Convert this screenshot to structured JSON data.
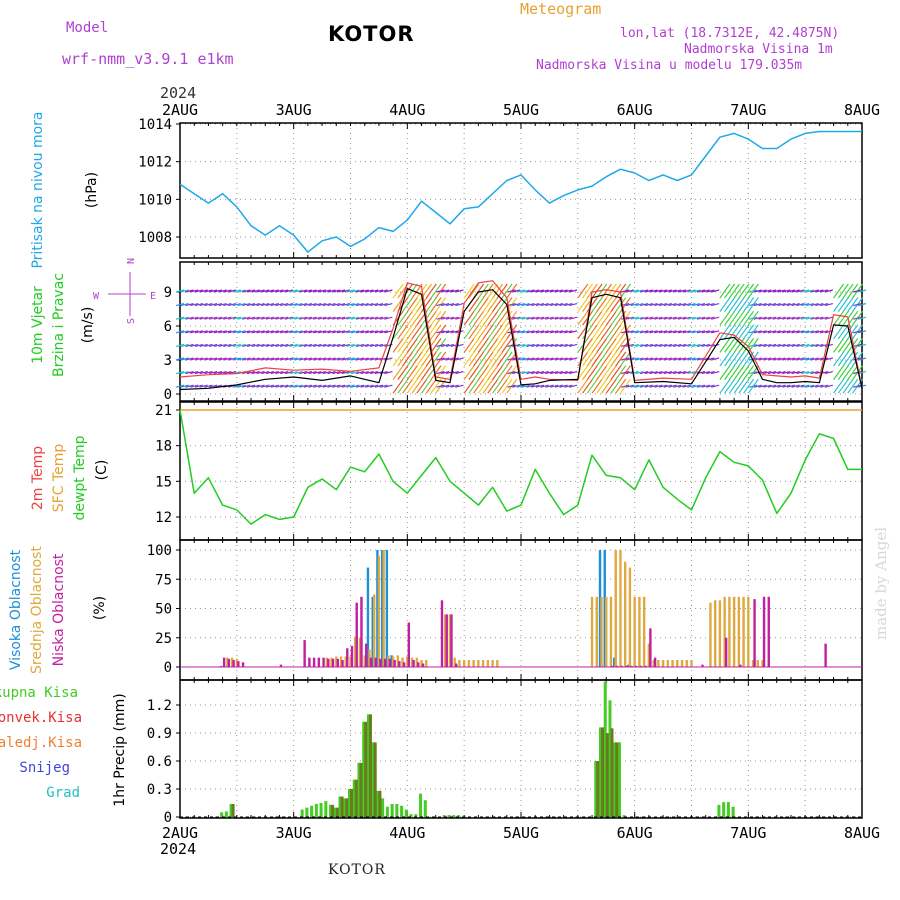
{
  "header": {
    "model_label": "Model",
    "model_name": "wrf-nmm_v3.9.1 e1km",
    "station": "KOTOR",
    "title": "Meteogram",
    "lonlat": "lon,lat (18.7312E, 42.4875N)",
    "elevation": "Nadmorska Visina 1m",
    "model_elevation": "Nadmorska Visina u modelu 179.035m",
    "year_top": "2024",
    "year_bottom": "2024",
    "footer_station": "KOTOR",
    "credit": "made by Angel"
  },
  "colors": {
    "pressure": "#20a8e8",
    "temp2m": "#f04040",
    "sfc": "#e8a030",
    "dewpt": "#22cc22",
    "high_cloud": "#1e90d8",
    "mid_cloud": "#e0a840",
    "low_cloud": "#c020a0",
    "total_precip": "#44cc22",
    "conv_precip": "#e83030",
    "freezing": "#f08030",
    "snow": "#4444dd",
    "hail": "#22c0c0",
    "wind_purple": "#9020c0"
  },
  "chart_data": [
    {
      "type": "line",
      "panel": "pressure",
      "ylabel_lines": [
        "Pritisak na nivou mora",
        "(hPa)"
      ],
      "x_ticks": [
        "2AUG",
        "3AUG",
        "4AUG",
        "5AUG",
        "6AUG",
        "7AUG",
        "8AUG"
      ],
      "x_unit": "hours since 2AUG 00UTC",
      "ylim": [
        1006.7,
        1014.1
      ],
      "yticks": [
        1008,
        1010,
        1012,
        1014
      ],
      "grid": true,
      "series": [
        {
          "name": "",
          "x": [
            0,
            3,
            6,
            9,
            12,
            15,
            18,
            21,
            24,
            27,
            30,
            33,
            36,
            39,
            42,
            45,
            48,
            51,
            54,
            57,
            60,
            63,
            66,
            69,
            72,
            75,
            78,
            81,
            84,
            87,
            90,
            93,
            96,
            99,
            102,
            105,
            108,
            111,
            114,
            117,
            120,
            123,
            126,
            129,
            132,
            135,
            138,
            141,
            144
          ],
          "values": [
            1010.8,
            1010.3,
            1009.8,
            1010.3,
            1009.6,
            1008.6,
            1008.1,
            1008.6,
            1008.1,
            1007.2,
            1007.8,
            1008.0,
            1007.5,
            1007.9,
            1008.5,
            1008.3,
            1008.9,
            1009.9,
            1009.3,
            1008.7,
            1009.5,
            1009.6,
            1010.3,
            1011.0,
            1011.3,
            1010.5,
            1009.8,
            1010.2,
            1010.5,
            1010.7,
            1011.2,
            1011.6,
            1011.4,
            1011.0,
            1011.3,
            1011.0,
            1011.3,
            1012.3,
            1013.3,
            1013.5,
            1013.2,
            1012.7,
            1012.7,
            1013.2,
            1013.5,
            1013.6,
            1013.6,
            1013.6,
            1013.6
          ]
        }
      ]
    },
    {
      "type": "line",
      "panel": "wind",
      "ylabel_lines": [
        "10m Vjetar",
        "Brzina i Pravac",
        "(m/s)"
      ],
      "compass": [
        "N",
        "S",
        "W",
        "E"
      ],
      "ylim": [
        -0.5,
        12.5
      ],
      "yticks": [
        0,
        3,
        6,
        9
      ],
      "grid": true,
      "series": [
        {
          "name": "speed",
          "color": "#000000",
          "x": [
            0,
            6,
            12,
            18,
            24,
            30,
            36,
            42,
            45,
            48,
            51,
            54,
            57,
            60,
            63,
            66,
            69,
            72,
            75,
            78,
            84,
            87,
            90,
            93,
            96,
            102,
            108,
            114,
            117,
            120,
            123,
            126,
            129,
            132,
            135,
            138,
            141,
            144
          ],
          "values": [
            0.4,
            0.5,
            0.8,
            1.3,
            1.5,
            1.2,
            1.6,
            1.0,
            5.0,
            9.3,
            8.8,
            1.2,
            1.0,
            7.3,
            9.0,
            9.2,
            7.9,
            0.8,
            0.9,
            1.2,
            1.3,
            8.5,
            8.8,
            8.5,
            1.0,
            1.1,
            0.9,
            4.8,
            5.0,
            3.8,
            1.3,
            1.0,
            1.0,
            1.1,
            1.0,
            6.1,
            6.0,
            0.5
          ]
        },
        {
          "name": "gust",
          "color": "#f04040",
          "x": [
            0,
            6,
            12,
            18,
            24,
            30,
            36,
            42,
            45,
            48,
            51,
            54,
            57,
            60,
            63,
            66,
            69,
            72,
            75,
            78,
            84,
            87,
            90,
            93,
            96,
            102,
            108,
            114,
            117,
            120,
            123,
            126,
            129,
            132,
            135,
            138,
            141,
            144
          ],
          "values": [
            1.5,
            1.7,
            1.8,
            2.3,
            2.1,
            2.2,
            2.0,
            2.3,
            5.8,
            9.8,
            9.5,
            1.5,
            1.3,
            8.0,
            9.8,
            10.0,
            8.5,
            1.3,
            1.5,
            1.3,
            1.2,
            9.0,
            9.2,
            9.0,
            1.2,
            1.4,
            1.3,
            5.4,
            5.2,
            4.2,
            1.7,
            1.6,
            1.5,
            1.6,
            1.4,
            7.0,
            6.8,
            0.5
          ]
        }
      ]
    },
    {
      "type": "line",
      "panel": "temperature",
      "ylabel_lines": [
        "2m Temp",
        "SFC Temp",
        "dewpt Temp",
        "(C)"
      ],
      "ylim": [
        10.5,
        21.3
      ],
      "yticks": [
        12,
        15,
        18,
        21
      ],
      "grid": true,
      "series": [
        {
          "name": "SFC Temp",
          "color": "#e8a030",
          "x": [
            0,
            144
          ],
          "values": [
            21.0,
            21.0
          ]
        },
        {
          "name": "dewpt Temp",
          "color": "#22cc22",
          "x": [
            0,
            3,
            6,
            9,
            12,
            15,
            18,
            21,
            24,
            27,
            30,
            33,
            36,
            39,
            42,
            45,
            48,
            51,
            54,
            57,
            60,
            63,
            66,
            69,
            72,
            75,
            78,
            81,
            84,
            87,
            90,
            93,
            96,
            99,
            102,
            105,
            108,
            111,
            114,
            117,
            120,
            123,
            126,
            129,
            132,
            135,
            138,
            141,
            144
          ],
          "values": [
            21.0,
            14.0,
            15.3,
            13.0,
            12.6,
            11.4,
            12.2,
            11.8,
            12.0,
            14.5,
            15.2,
            14.3,
            16.2,
            15.8,
            17.3,
            15.0,
            14.0,
            15.5,
            17.0,
            15.0,
            14.0,
            13.0,
            14.5,
            12.5,
            13.0,
            16.0,
            14.0,
            12.2,
            13.0,
            17.2,
            15.5,
            15.3,
            14.3,
            16.8,
            14.5,
            13.5,
            12.6,
            15.3,
            17.5,
            16.6,
            16.3,
            15.1,
            12.3,
            14.0,
            16.8,
            19.0,
            18.6,
            16.0,
            16.0
          ]
        }
      ]
    },
    {
      "type": "bar",
      "panel": "clouds",
      "ylabel_lines": [
        "Visoka Oblacnost",
        "Srednja Oblacnost",
        "Niska Oblacnost",
        "(%)"
      ],
      "ylim": [
        0,
        100
      ],
      "yticks": [
        0,
        25,
        50,
        75,
        100
      ],
      "grid": true,
      "series": [
        {
          "name": "Visoka Oblacnost",
          "color": "#1e90d8",
          "x": [
            9,
            40,
            41,
            42,
            43,
            44,
            45,
            89,
            90,
            92,
            95
          ],
          "values": [
            1,
            85,
            60,
            100,
            100,
            100,
            10,
            100,
            100,
            8,
            2
          ]
        },
        {
          "name": "Srednja Oblacnost",
          "color": "#e0a840",
          "x": [
            10,
            11,
            12,
            31,
            32,
            33,
            34,
            35,
            36,
            37,
            38,
            39,
            40,
            41,
            42,
            43,
            44,
            45,
            46,
            47,
            48,
            49,
            50,
            51,
            52,
            56,
            57,
            58,
            59,
            60,
            61,
            62,
            63,
            64,
            65,
            66,
            67,
            87,
            88,
            89,
            90,
            91,
            92,
            93,
            94,
            95,
            96,
            97,
            98,
            99,
            100,
            101,
            102,
            103,
            104,
            105,
            106,
            107,
            108,
            112,
            113,
            114,
            115,
            116,
            117,
            118,
            119,
            120,
            121,
            122,
            123
          ],
          "values": [
            8,
            8,
            7,
            8,
            8,
            9,
            9,
            9,
            9,
            26,
            25,
            10,
            15,
            62,
            95,
            100,
            10,
            9,
            10,
            8,
            9,
            8,
            8,
            6,
            6,
            45,
            45,
            8,
            6,
            6,
            6,
            6,
            6,
            6,
            6,
            6,
            6,
            60,
            60,
            60,
            60,
            60,
            100,
            100,
            90,
            85,
            60,
            60,
            60,
            20,
            6,
            6,
            6,
            6,
            6,
            6,
            6,
            6,
            6,
            55,
            57,
            57,
            60,
            60,
            60,
            60,
            60,
            60,
            6,
            6,
            6
          ]
        },
        {
          "name": "Niska Oblacnost",
          "color": "#c020a0",
          "x": [
            9,
            10,
            11,
            12,
            13,
            21,
            26,
            27,
            28,
            29,
            30,
            31,
            32,
            33,
            34,
            35,
            36,
            37,
            38,
            39,
            40,
            41,
            42,
            43,
            44,
            45,
            46,
            47,
            48,
            49,
            50,
            51,
            55,
            56,
            57,
            58,
            91,
            92,
            93,
            94,
            95,
            96,
            97,
            98,
            99,
            100,
            110,
            115,
            118,
            121,
            123,
            124,
            136
          ],
          "values": [
            8,
            7,
            6,
            5,
            4,
            2,
            23,
            8,
            8,
            8,
            8,
            7,
            7,
            7,
            6,
            16,
            18,
            55,
            60,
            20,
            8,
            8,
            7,
            7,
            7,
            6,
            5,
            4,
            38,
            6,
            4,
            3,
            57,
            45,
            45,
            3,
            1,
            1,
            1,
            1,
            1,
            1,
            1,
            1,
            33,
            8,
            2,
            25,
            2,
            58,
            60,
            60,
            20
          ]
        }
      ]
    },
    {
      "type": "bar",
      "panel": "precipitation",
      "ylabel_lines": [
        "1hr Precip (mm)"
      ],
      "legend": [
        "Ukupna Kisa",
        "Konvek.Kisa",
        "Zaledj.Kisa",
        "Snijeg",
        "Grad"
      ],
      "ylim": [
        0,
        1.5
      ],
      "yticks": [
        0,
        0.3,
        0.6,
        0.9,
        1.2
      ],
      "grid": true,
      "series": [
        {
          "name": "Ukupna Kisa",
          "color": "#44cc22",
          "x": [
            9,
            10,
            11,
            26,
            27,
            28,
            29,
            30,
            31,
            32,
            33,
            34,
            35,
            36,
            37,
            38,
            39,
            40,
            41,
            42,
            43,
            44,
            45,
            46,
            47,
            48,
            49,
            50,
            51,
            52,
            56,
            57,
            58,
            59,
            88,
            89,
            90,
            91,
            92,
            93,
            94,
            114,
            115,
            116,
            117
          ],
          "values": [
            0.05,
            0.06,
            0.14,
            0.08,
            0.1,
            0.12,
            0.14,
            0.15,
            0.17,
            0.13,
            0.1,
            0.22,
            0.2,
            0.3,
            0.4,
            0.58,
            1.02,
            1.1,
            0.8,
            0.28,
            0.2,
            0.11,
            0.14,
            0.14,
            0.12,
            0.08,
            0.03,
            0.03,
            0.25,
            0.18,
            0.02,
            0.02,
            0.02,
            0.02,
            0.6,
            0.96,
            1.45,
            1.25,
            0.8,
            0.8,
            0.02,
            0.13,
            0.16,
            0.16,
            0.11
          ]
        },
        {
          "name": "Konvek.Kisa",
          "color": "#e83030",
          "x": [
            11,
            32,
            33,
            34,
            35,
            36,
            37,
            38,
            39,
            40,
            41,
            42,
            88,
            89,
            90,
            91,
            92
          ],
          "values": [
            0.14,
            0.13,
            0.1,
            0.22,
            0.2,
            0.3,
            0.4,
            0.58,
            1.02,
            1.1,
            0.8,
            0.28,
            0.6,
            0.96,
            0.9,
            0.95,
            0.8
          ]
        }
      ]
    }
  ]
}
